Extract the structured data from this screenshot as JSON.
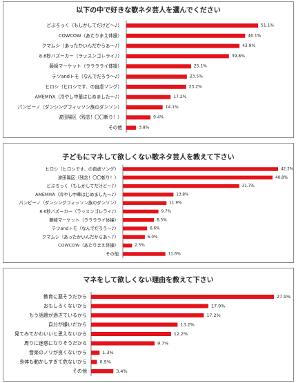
{
  "chart_data": [
    {
      "type": "bar",
      "title": "以下の中で好きな歌ネタ芸人を選んでください",
      "color": "#e3141b",
      "categories": [
        "どぶろっく（もしかしてだけど～♪）",
        "COWCOW（あたりまえ体操）",
        "クマムシ（あったかいんだからぁ～♪）",
        "8.6秒バズーカー（ラッスンゴレライ♪）",
        "藤崎マーケット（ラララライ体操）",
        "テツandトモ（なんでだろう～♪）",
        "ヒロシ（ヒロシです、の自虐ソング）",
        "AMEMIYA（冷やし中華はじめました～♪）",
        "パンピーノ（ダンシングフィッソン族のダンソン）",
        "波田陽区（残念！〇〇斬り！）",
        "その他"
      ],
      "values": [
        51.1,
        46.1,
        43.9,
        39.8,
        25.1,
        23.5,
        23.2,
        17.2,
        14.1,
        9.4,
        3.8
      ],
      "value_labels": [
        "51.1%",
        "46.1%",
        "43.9%",
        "39.8%",
        "25.1%",
        "23.5%",
        "23.2%",
        "17.2%",
        "14.1%",
        "9.4%",
        "3.8%"
      ]
    },
    {
      "type": "bar",
      "title": "子どもにマネして欲しくない歌ネタ芸人を教えて下さい",
      "color": "#e3141b",
      "categories": [
        "ヒロシ（ヒロシです、の自虐ソング）",
        "波田陽区（残念！〇〇斬り！）",
        "どぶろっく（もしかしてだけど～♪）",
        "AMEMIYA（冷やし中華はじめました～♪）",
        "パンピーノ（ダンシングフィッソン族のダンソン）",
        "8.6秒バズーカー（ラッスンゴレライ♪）",
        "藤崎マーケット（ラララライ体操）",
        "テツandトモ（なんでだろう～♪）",
        "クマムシ（あったかいんだからあ～♪）",
        "COWCOW（あたりまえ体操）",
        "その他"
      ],
      "values": [
        42.3,
        40.8,
        31.7,
        13.8,
        11.9,
        9.7,
        8.5,
        6.6,
        6.0,
        2.5,
        11.6
      ],
      "value_labels": [
        "42.3%",
        "40.8%",
        "31.7%",
        "13.8%",
        "11.9%",
        "9.7%",
        "8.5%",
        "6.6%",
        "6.0%",
        "2.5%",
        "11.6%"
      ]
    },
    {
      "type": "bar",
      "title": "マネをして欲しくない理由を教えて下さい",
      "color": "#e3141b",
      "categories": [
        "教育に悪そうだから",
        "おもしろくないから",
        "もう話題が過ぎているから",
        "自分が嫌いだから",
        "見てみてかわいいと思えないから",
        "周りに迷惑になりそうだから",
        "音楽のノリが良くないから",
        "身体も動かしすぎて危ないから",
        "その他"
      ],
      "values": [
        27.9,
        17.9,
        17.2,
        13.2,
        12.2,
        9.7,
        1.3,
        0.9,
        3.4
      ],
      "value_labels": [
        "27.9%",
        "17.9%",
        "17.2%",
        "13.2%",
        "12.2%",
        "9.7%",
        "1.3%",
        "0.9%",
        "3.4%"
      ]
    }
  ]
}
